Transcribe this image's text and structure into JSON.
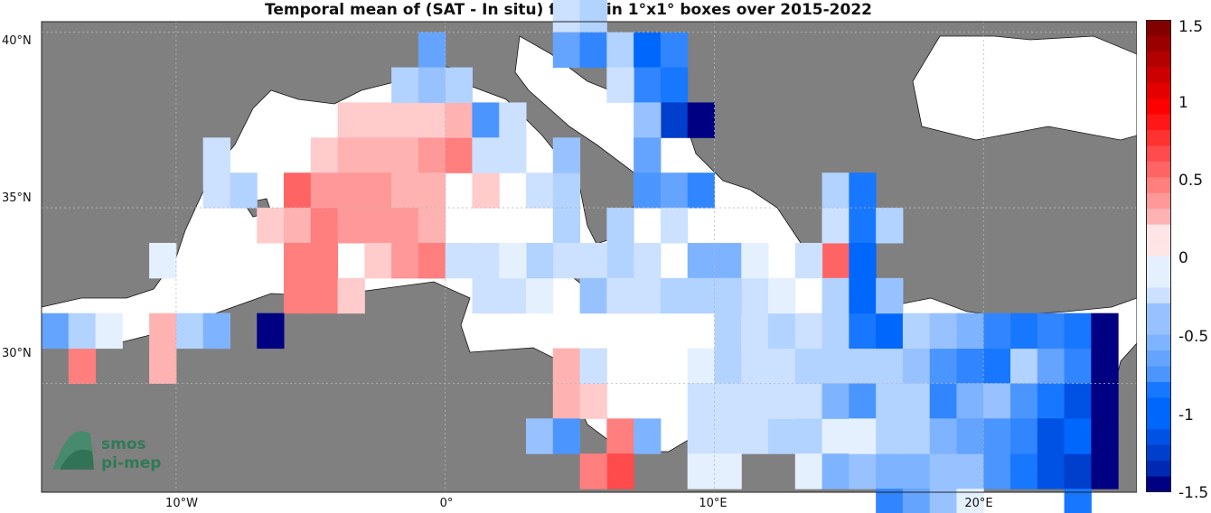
{
  "chart_data": {
    "type": "heatmap",
    "title": "Temporal mean of (SAT - In situ) for C4 in 1°x1° boxes over 2015-2022",
    "x_ticks": [
      "10°W",
      "0°",
      "10°E",
      "20°E"
    ],
    "y_ticks": [
      "40°N",
      "35°N",
      "30°N"
    ],
    "colorbar": {
      "range": [
        -1.5,
        1.5
      ],
      "ticks": [
        "1.5",
        "1",
        "0.5",
        "0",
        "-0.5",
        "-1",
        "-1.5"
      ],
      "colormap": "blue-white-red"
    },
    "xlim": [
      -15.0,
      25.7
    ],
    "ylim": [
      26.9,
      40.3
    ],
    "cells": [
      [
        -3.5,
        37.5,
        0.2
      ],
      [
        -2.5,
        37.5,
        0.2
      ],
      [
        -1.5,
        37.5,
        0.2
      ],
      [
        -0.5,
        37.5,
        0.2
      ],
      [
        0.5,
        37.5,
        0.25
      ],
      [
        -4.5,
        36.5,
        0.2
      ],
      [
        -3.5,
        36.5,
        0.35
      ],
      [
        -2.5,
        36.5,
        0.35
      ],
      [
        -1.5,
        36.5,
        0.35
      ],
      [
        -0.5,
        36.5,
        0.4
      ],
      [
        0.5,
        36.5,
        0.5
      ],
      [
        -5.5,
        35.5,
        0.6
      ],
      [
        -4.5,
        35.5,
        0.4
      ],
      [
        -3.5,
        35.5,
        0.4
      ],
      [
        -2.5,
        35.5,
        0.4
      ],
      [
        -1.5,
        35.5,
        0.35
      ],
      [
        -0.5,
        35.5,
        0.3
      ],
      [
        -6.5,
        34.5,
        0.2
      ],
      [
        -5.5,
        34.5,
        0.35
      ],
      [
        -4.5,
        34.5,
        0.5
      ],
      [
        -3.5,
        34.5,
        0.4
      ],
      [
        -2.5,
        34.5,
        0.4
      ],
      [
        -1.5,
        34.5,
        0.4
      ],
      [
        -0.5,
        34.5,
        0.3
      ],
      [
        -5.5,
        33.5,
        0.5
      ],
      [
        -4.5,
        33.5,
        0.5
      ],
      [
        -2.5,
        33.5,
        0.2
      ],
      [
        -1.5,
        33.5,
        0.4
      ],
      [
        -0.5,
        33.5,
        0.5
      ],
      [
        -5.5,
        32.5,
        0.5
      ],
      [
        -4.5,
        32.5,
        0.5
      ],
      [
        -3.5,
        32.5,
        0.2
      ],
      [
        0.5,
        36.5,
        0.5
      ],
      [
        0.5,
        37.5,
        0.25
      ],
      [
        1.5,
        37.5,
        0.2
      ],
      [
        1.5,
        35.5,
        0.2
      ],
      [
        -10.5,
        31.5,
        0.35
      ],
      [
        -10.5,
        30.5,
        0.35
      ],
      [
        -8.5,
        31.5,
        0.2
      ],
      [
        -13.5,
        30.5,
        0.5
      ],
      [
        -1.5,
        33.5,
        0.4
      ],
      [
        -0.5,
        33.5,
        0.5
      ],
      [
        4.5,
        30.5,
        0.35
      ],
      [
        4.5,
        29.5,
        0.35
      ],
      [
        5.5,
        29.5,
        0.2
      ],
      [
        6.5,
        28.5,
        0.5
      ],
      [
        6.5,
        27.5,
        0.7
      ],
      [
        5.5,
        27.5,
        0.45
      ],
      [
        14.5,
        34.5,
        0.2
      ],
      [
        14.5,
        33.5,
        0.6
      ],
      [
        -0.5,
        39.5,
        -0.6
      ],
      [
        -1.5,
        38.5,
        -0.3
      ],
      [
        -0.5,
        38.5,
        -0.4
      ],
      [
        0.5,
        38.5,
        -0.3
      ],
      [
        1.5,
        37.5,
        -0.7
      ],
      [
        2.5,
        37.5,
        -0.2
      ],
      [
        2.5,
        36.5,
        -0.2
      ],
      [
        1.5,
        36.5,
        -0.2
      ],
      [
        -8.5,
        36.5,
        -0.2
      ],
      [
        -8.5,
        35.5,
        -0.2
      ],
      [
        -7.5,
        35.5,
        -0.3
      ],
      [
        -10.5,
        33.5,
        -0.1
      ],
      [
        -9.5,
        31.5,
        -0.3
      ],
      [
        -8.5,
        31.5,
        -0.5
      ],
      [
        -6.5,
        31.5,
        -1.5
      ],
      [
        -14.5,
        31.5,
        -0.6
      ],
      [
        -13.5,
        31.5,
        -0.3
      ],
      [
        -12.5,
        31.5,
        -0.15
      ],
      [
        1.5,
        33.5,
        -0.2
      ],
      [
        0.5,
        33.5,
        -0.25
      ],
      [
        1.5,
        32.5,
        -0.25
      ],
      [
        2.5,
        32.5,
        -0.25
      ],
      [
        3.5,
        32.5,
        -0.15
      ],
      [
        3.5,
        35.5,
        -0.2
      ],
      [
        4.5,
        35.5,
        -0.35
      ],
      [
        4.5,
        34.5,
        -0.35
      ],
      [
        4.5,
        33.5,
        -0.2
      ],
      [
        4.5,
        36.5,
        -0.45
      ],
      [
        3.5,
        33.5,
        -0.35
      ],
      [
        2.5,
        33.5,
        -0.1
      ],
      [
        3.5,
        41.5,
        -0.15
      ],
      [
        4.5,
        41.5,
        -0.15
      ],
      [
        4.5,
        40.5,
        -0.2
      ],
      [
        5.5,
        40.5,
        -0.3
      ],
      [
        4.5,
        39.5,
        -0.6
      ],
      [
        5.5,
        39.5,
        -0.85
      ],
      [
        6.5,
        39.5,
        -0.3
      ],
      [
        7.5,
        39.5,
        -1.0
      ],
      [
        8.5,
        39.5,
        -0.85
      ],
      [
        7.5,
        38.5,
        -0.85
      ],
      [
        8.5,
        38.5,
        -0.9
      ],
      [
        6.5,
        38.5,
        -0.2
      ],
      [
        8.5,
        37.5,
        -1.2
      ],
      [
        9.5,
        37.5,
        -1.5
      ],
      [
        7.5,
        37.5,
        -0.4
      ],
      [
        7.5,
        36.5,
        -0.6
      ],
      [
        7.5,
        35.5,
        -0.7
      ],
      [
        8.5,
        35.5,
        -0.6
      ],
      [
        9.5,
        35.5,
        -0.85
      ],
      [
        8.5,
        34.5,
        -0.2
      ],
      [
        6.5,
        34.5,
        -0.35
      ],
      [
        6.5,
        33.5,
        -0.3
      ],
      [
        7.5,
        33.5,
        -0.25
      ],
      [
        9.5,
        33.5,
        -0.55
      ],
      [
        5.5,
        33.5,
        -0.2
      ],
      [
        5.5,
        32.5,
        -0.45
      ],
      [
        6.5,
        32.5,
        -0.25
      ],
      [
        7.5,
        32.5,
        -0.2
      ],
      [
        8.5,
        32.5,
        -0.3
      ],
      [
        9.5,
        32.5,
        -0.3
      ],
      [
        10.5,
        33.5,
        -0.5
      ],
      [
        10.5,
        32.5,
        -0.4
      ],
      [
        10.5,
        31.5,
        -0.35
      ],
      [
        11.5,
        31.5,
        -0.2
      ],
      [
        12.5,
        31.5,
        -0.3
      ],
      [
        5.5,
        30.5,
        -0.2
      ],
      [
        9.5,
        30.5,
        -0.1
      ],
      [
        10.5,
        30.5,
        -0.35
      ],
      [
        11.5,
        30.5,
        -0.2
      ],
      [
        12.5,
        30.5,
        -0.2
      ],
      [
        9.5,
        29.5,
        -0.2
      ],
      [
        10.5,
        29.5,
        -0.2
      ],
      [
        11.5,
        29.5,
        -0.2
      ],
      [
        12.5,
        29.5,
        -0.2
      ],
      [
        13.5,
        29.5,
        -0.25
      ],
      [
        3.5,
        28.5,
        -0.45
      ],
      [
        4.5,
        28.5,
        -0.7
      ],
      [
        7.5,
        28.5,
        -0.55
      ],
      [
        9.5,
        28.5,
        -0.2
      ],
      [
        10.5,
        28.5,
        -0.25
      ],
      [
        11.5,
        28.5,
        -0.25
      ],
      [
        12.5,
        28.5,
        -0.3
      ],
      [
        13.5,
        28.5,
        -0.3
      ],
      [
        14.5,
        28.5,
        -0.15
      ],
      [
        15.5,
        28.5,
        -0.15
      ],
      [
        9.5,
        27.5,
        -0.15
      ],
      [
        10.5,
        27.5,
        -0.15
      ],
      [
        13.5,
        27.5,
        -0.15
      ],
      [
        14.5,
        27.5,
        -0.5
      ],
      [
        15.5,
        27.5,
        -0.4
      ],
      [
        16.5,
        27.5,
        -0.55
      ],
      [
        17.5,
        27.5,
        -0.55
      ],
      [
        18.5,
        27.5,
        -0.4
      ],
      [
        19.5,
        27.5,
        -0.4
      ],
      [
        20.5,
        27.5,
        -0.75
      ],
      [
        21.5,
        27.5,
        -0.9
      ],
      [
        22.5,
        27.5,
        -1.1
      ],
      [
        23.5,
        27.5,
        -1.2
      ],
      [
        24.5,
        27.5,
        -1.5
      ],
      [
        16.5,
        26.5,
        -0.8
      ],
      [
        17.5,
        26.5,
        -0.6
      ],
      [
        18.5,
        26.5,
        -0.45
      ],
      [
        19.5,
        26.5,
        -0.15
      ],
      [
        23.5,
        26.5,
        -0.9
      ],
      [
        13.5,
        30.5,
        -0.3
      ],
      [
        14.5,
        30.5,
        -0.35
      ],
      [
        15.5,
        30.5,
        -0.3
      ],
      [
        16.5,
        30.5,
        -0.35
      ],
      [
        17.5,
        30.5,
        -0.45
      ],
      [
        18.5,
        30.5,
        -0.7
      ],
      [
        19.5,
        30.5,
        -0.85
      ],
      [
        20.5,
        30.5,
        -0.9
      ],
      [
        21.5,
        30.5,
        -0.3
      ],
      [
        22.5,
        30.5,
        -0.6
      ],
      [
        23.5,
        30.5,
        -0.85
      ],
      [
        24.5,
        30.5,
        -1.5
      ],
      [
        12.5,
        29.5,
        -0.2
      ],
      [
        14.5,
        29.5,
        -0.5
      ],
      [
        15.5,
        29.5,
        -0.7
      ],
      [
        16.5,
        29.5,
        -0.3
      ],
      [
        17.5,
        29.5,
        -0.3
      ],
      [
        18.5,
        29.5,
        -0.8
      ],
      [
        19.5,
        29.5,
        -0.55
      ],
      [
        20.5,
        29.5,
        -0.4
      ],
      [
        21.5,
        29.5,
        -0.7
      ],
      [
        22.5,
        29.5,
        -0.95
      ],
      [
        23.5,
        29.5,
        -1.05
      ],
      [
        24.5,
        29.5,
        -1.5
      ],
      [
        15.5,
        28.5,
        -0.15
      ],
      [
        16.5,
        28.5,
        -0.3
      ],
      [
        17.5,
        28.5,
        -0.3
      ],
      [
        18.5,
        28.5,
        -0.5
      ],
      [
        19.5,
        28.5,
        -0.6
      ],
      [
        20.5,
        28.5,
        -0.75
      ],
      [
        21.5,
        28.5,
        -0.8
      ],
      [
        22.5,
        28.5,
        -1.1
      ],
      [
        23.5,
        28.5,
        -1.0
      ],
      [
        24.5,
        28.5,
        -1.5
      ],
      [
        11.5,
        31.5,
        -0.2
      ],
      [
        12.5,
        31.5,
        -0.3
      ],
      [
        13.5,
        31.5,
        -0.2
      ],
      [
        14.5,
        31.5,
        -0.3
      ],
      [
        15.5,
        31.5,
        -0.9
      ],
      [
        16.5,
        31.5,
        -1.0
      ],
      [
        17.5,
        31.5,
        -0.3
      ],
      [
        18.5,
        31.5,
        -0.45
      ],
      [
        19.5,
        31.5,
        -0.5
      ],
      [
        20.5,
        31.5,
        -0.85
      ],
      [
        21.5,
        31.5,
        -0.95
      ],
      [
        22.5,
        31.5,
        -0.8
      ],
      [
        23.5,
        31.5,
        -0.95
      ],
      [
        24.5,
        31.5,
        -1.5
      ],
      [
        14.5,
        32.5,
        -0.3
      ],
      [
        15.5,
        32.5,
        -1.0
      ],
      [
        16.5,
        32.5,
        -0.4
      ],
      [
        14.5,
        35.5,
        -0.35
      ],
      [
        15.5,
        35.5,
        -0.9
      ],
      [
        14.5,
        34.5,
        -0.25
      ],
      [
        15.5,
        34.5,
        -0.9
      ],
      [
        13.5,
        33.5,
        -0.2
      ],
      [
        15.5,
        33.5,
        -1.0
      ],
      [
        16.5,
        34.5,
        -0.3
      ],
      [
        11.5,
        32.5,
        -0.25
      ],
      [
        10.5,
        32.5,
        -0.35
      ],
      [
        11.5,
        33.5,
        -0.15
      ],
      [
        12.5,
        32.5,
        -0.15
      ]
    ]
  }
}
